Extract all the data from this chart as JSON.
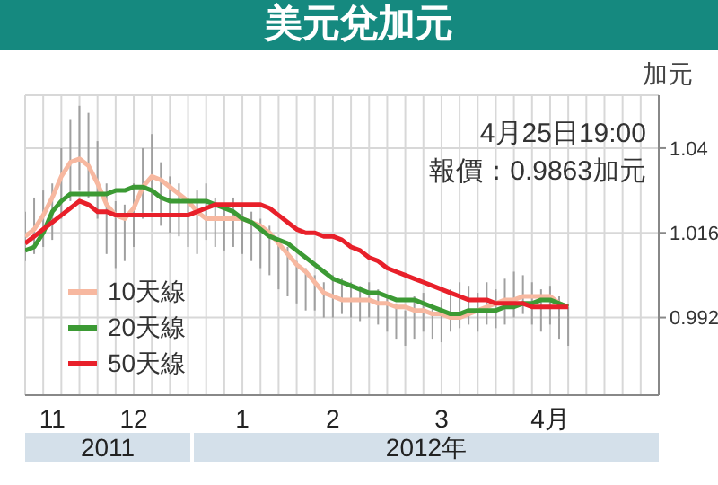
{
  "chart_data": {
    "type": "line",
    "title": "美元兌加元",
    "ylabel": "加元",
    "categories": [
      null,
      null,
      null,
      "11",
      null,
      null,
      null,
      null,
      null,
      null,
      null,
      null,
      "12",
      null,
      null,
      null,
      null,
      null,
      null,
      null,
      null,
      null,
      null,
      null,
      "1",
      null,
      null,
      null,
      null,
      null,
      null,
      null,
      null,
      null,
      "2",
      null,
      null,
      null,
      null,
      null,
      null,
      null,
      null,
      null,
      null,
      null,
      "3",
      null,
      null,
      null,
      null,
      null,
      null,
      null,
      null,
      null,
      null,
      null,
      "4月",
      null,
      null,
      null,
      null,
      null,
      null,
      null,
      null,
      null,
      null,
      null,
      null
    ],
    "series": [
      {
        "type": "bar",
        "color": "#a0a0a0",
        "base": [
          1.008,
          1.01,
          1.012,
          1.014,
          1.02,
          1.025,
          1.028,
          1.026,
          1.02,
          1.01,
          1.006,
          1.008,
          1.012,
          1.02,
          1.022,
          1.018,
          1.016,
          1.015,
          1.012,
          1.01,
          1.014,
          1.012,
          1.011,
          1.012,
          1.01,
          1.008,
          1.006,
          1.004,
          1.0,
          0.998,
          0.996,
          0.994,
          0.994,
          0.992,
          0.992,
          0.993,
          0.992,
          0.991,
          0.992,
          0.99,
          0.988,
          0.986,
          0.984,
          0.986,
          0.988,
          0.986,
          0.985,
          0.988,
          0.989,
          0.99,
          0.988,
          0.99,
          0.989,
          0.99,
          0.992,
          0.993,
          0.99,
          0.988,
          0.99,
          0.986,
          0.984,
          null,
          null,
          null,
          null,
          null,
          null,
          null,
          null,
          null,
          null
        ],
        "values": [
          0.014,
          0.016,
          0.016,
          0.016,
          0.02,
          0.023,
          0.024,
          0.024,
          0.022,
          0.02,
          0.019,
          0.016,
          0.018,
          0.02,
          0.022,
          0.018,
          0.016,
          0.015,
          0.014,
          0.018,
          0.016,
          0.014,
          0.013,
          0.014,
          0.014,
          0.014,
          0.014,
          0.014,
          0.014,
          0.014,
          0.012,
          0.012,
          0.01,
          0.01,
          0.012,
          0.01,
          0.01,
          0.01,
          0.01,
          0.01,
          0.01,
          0.01,
          0.01,
          0.012,
          0.011,
          0.01,
          0.012,
          0.012,
          0.013,
          0.011,
          0.011,
          0.012,
          0.011,
          0.013,
          0.013,
          0.011,
          0.012,
          0.012,
          0.011,
          0.012,
          0.011,
          null,
          null,
          null,
          null,
          null,
          null,
          null,
          null,
          null,
          null
        ]
      },
      {
        "type": "line",
        "name": "10天線",
        "color": "#f7b8a0",
        "values": [
          1.015,
          1.017,
          1.021,
          1.026,
          1.032,
          1.036,
          1.037,
          1.035,
          1.03,
          1.024,
          1.021,
          1.02,
          1.023,
          1.029,
          1.032,
          1.031,
          1.029,
          1.027,
          1.025,
          1.022,
          1.02,
          1.02,
          1.02,
          1.02,
          1.02,
          1.019,
          1.018,
          1.016,
          1.013,
          1.01,
          1.007,
          1.005,
          1.002,
          0.999,
          0.998,
          0.997,
          0.997,
          0.997,
          0.997,
          0.996,
          0.996,
          0.995,
          0.995,
          0.994,
          0.994,
          0.993,
          0.993,
          0.992,
          0.992,
          0.993,
          0.994,
          0.995,
          0.996,
          0.997,
          0.997,
          0.998,
          0.998,
          0.998,
          0.998,
          0.996,
          0.995,
          null,
          null,
          null,
          null,
          null,
          null,
          null,
          null,
          null,
          null
        ]
      },
      {
        "type": "line",
        "name": "20天線",
        "color": "#3c9a34",
        "values": [
          1.011,
          1.012,
          1.016,
          1.022,
          1.025,
          1.027,
          1.027,
          1.027,
          1.027,
          1.027,
          1.028,
          1.028,
          1.029,
          1.029,
          1.028,
          1.026,
          1.025,
          1.025,
          1.025,
          1.025,
          1.025,
          1.024,
          1.023,
          1.022,
          1.02,
          1.019,
          1.017,
          1.015,
          1.014,
          1.013,
          1.011,
          1.009,
          1.007,
          1.005,
          1.003,
          1.002,
          1.001,
          1.0,
          0.999,
          0.999,
          0.998,
          0.997,
          0.997,
          0.997,
          0.996,
          0.995,
          0.994,
          0.993,
          0.993,
          0.994,
          0.994,
          0.994,
          0.994,
          0.995,
          0.995,
          0.996,
          0.996,
          0.997,
          0.997,
          0.996,
          0.995,
          null,
          null,
          null,
          null,
          null,
          null,
          null,
          null,
          null,
          null
        ]
      },
      {
        "type": "line",
        "name": "50天線",
        "color": "#e8202a",
        "values": [
          1.013,
          1.015,
          1.017,
          1.019,
          1.021,
          1.023,
          1.025,
          1.024,
          1.022,
          1.022,
          1.021,
          1.021,
          1.021,
          1.021,
          1.021,
          1.021,
          1.021,
          1.021,
          1.021,
          1.022,
          1.023,
          1.024,
          1.024,
          1.024,
          1.024,
          1.024,
          1.024,
          1.023,
          1.021,
          1.019,
          1.017,
          1.016,
          1.016,
          1.015,
          1.015,
          1.014,
          1.012,
          1.011,
          1.009,
          1.008,
          1.006,
          1.005,
          1.004,
          1.003,
          1.002,
          1.001,
          1.0,
          0.999,
          0.998,
          0.997,
          0.997,
          0.997,
          0.996,
          0.996,
          0.996,
          0.996,
          0.995,
          0.995,
          0.995,
          0.995,
          0.995,
          null,
          null,
          null,
          null,
          null,
          null,
          null,
          null,
          null,
          null
        ]
      }
    ],
    "ylim": [
      0.97,
      1.055
    ],
    "yticks": [
      0.992,
      1.016,
      1.04
    ],
    "grid": true,
    "legend": "bottom left",
    "annotations": [
      "4月25日19:00",
      "報價：0.9863加元",
      "2011",
      "2012年"
    ]
  }
}
